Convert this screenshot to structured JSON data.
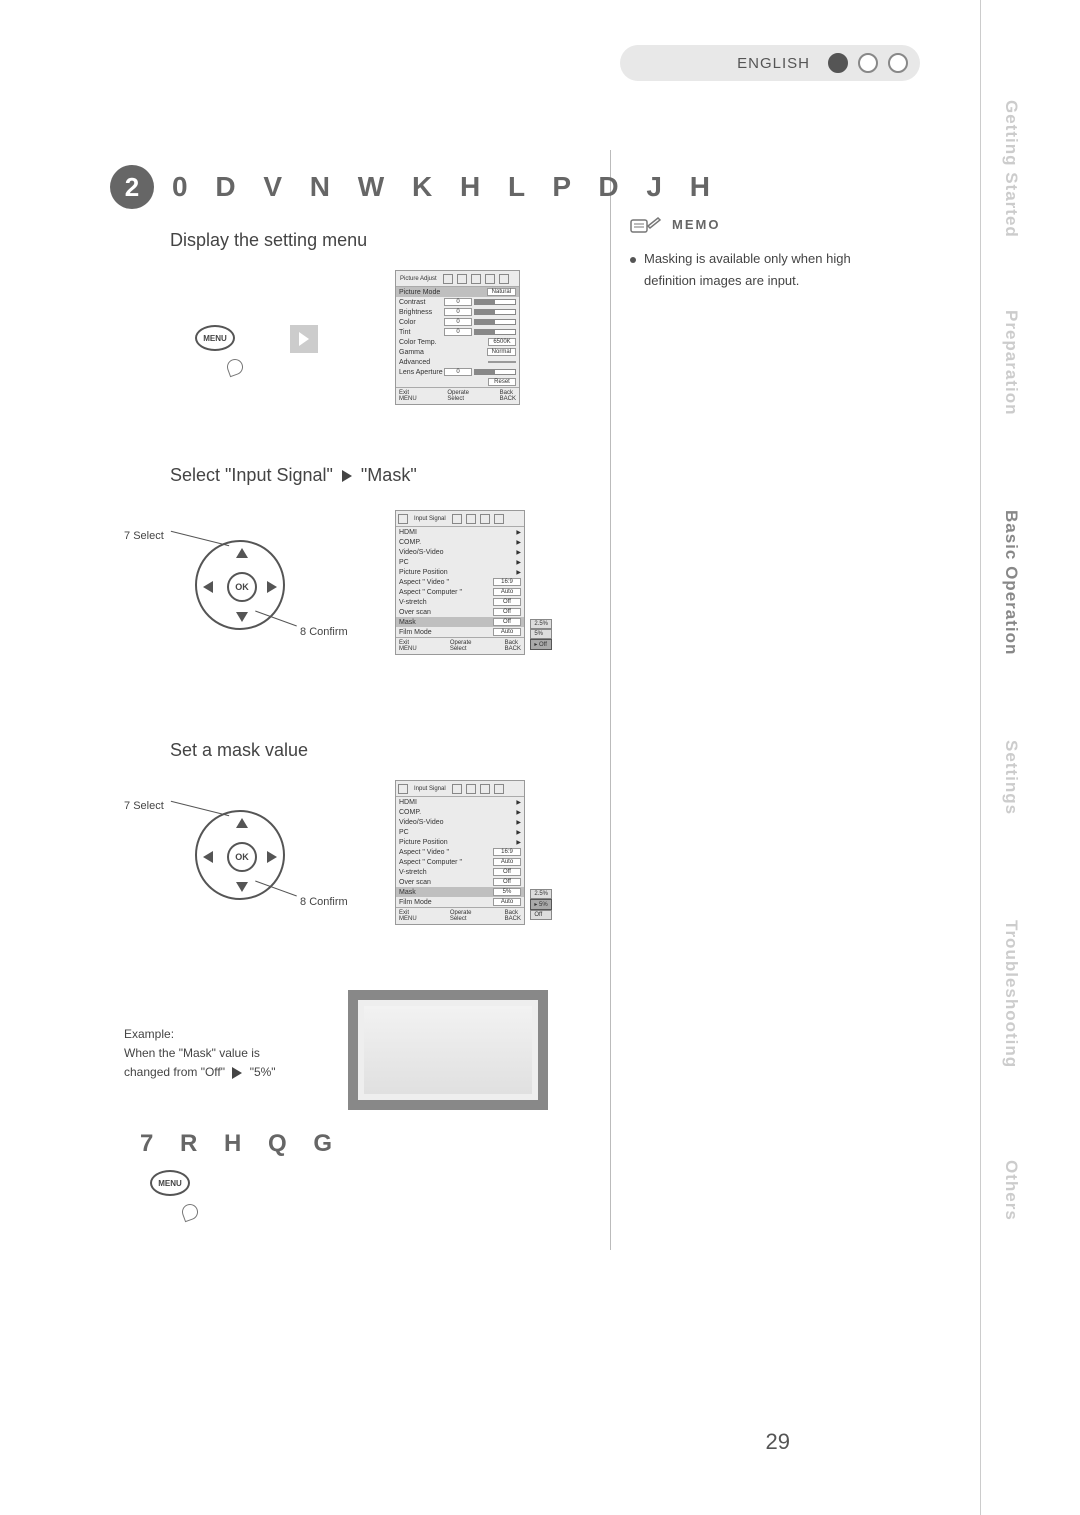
{
  "language_label": "ENGLISH",
  "section_number": "2",
  "section_title": "0 D V N   W K H   L P D J H",
  "step_1": "Display the setting menu",
  "step_2_prefix": "Select \"Input Signal\"",
  "step_2_suffix": "\"Mask\"",
  "step_3": "Set a mask value",
  "select_label_num": "7",
  "select_label": "Select",
  "confirm_label_num": "8",
  "confirm_label": "Confirm",
  "ok_label": "OK",
  "menu_btn": "MENU",
  "memo_heading": "MEMO",
  "memo_line1": "Masking is available only when high",
  "memo_line2": "definition images are input.",
  "example_l1": "Example:",
  "example_l2": "When the \"Mask\" value is",
  "example_l3_a": "changed from \"Off\"",
  "example_l3_b": "\"5%\"",
  "to_end": "7 R   H Q G",
  "page_number": "29",
  "side_tabs": {
    "gs": "Getting Started",
    "prep": "Preparation",
    "basic": "Basic Operation",
    "settings": "Settings",
    "trouble": "Troubleshooting",
    "others": "Others"
  },
  "osd1": {
    "title": "Picture Adjust",
    "rows": [
      {
        "l": "Picture Mode",
        "v": "Natural",
        "hl": true
      },
      {
        "l": "Contrast",
        "v": "0",
        "bar": true
      },
      {
        "l": "Brightness",
        "v": "0",
        "bar": true
      },
      {
        "l": "Color",
        "v": "0",
        "bar": true
      },
      {
        "l": "Tint",
        "v": "0",
        "bar": true
      },
      {
        "l": "Color Temp.",
        "v": "6500K"
      },
      {
        "l": "Gamma",
        "v": "Normal"
      },
      {
        "l": "Advanced",
        "v": ""
      },
      {
        "l": "Lens Aperture",
        "v": "0",
        "bar": true
      },
      {
        "l": "",
        "v": "Reset"
      }
    ],
    "footer": {
      "exit": "Exit",
      "menu": "MENU",
      "op": "Operate",
      "sel": "Select",
      "back": "Back",
      "bk": "BACK"
    }
  },
  "osd2": {
    "title": "Input Signal",
    "rows": [
      {
        "l": "HDMI"
      },
      {
        "l": "COMP."
      },
      {
        "l": "Video/S-Video"
      },
      {
        "l": "PC"
      },
      {
        "l": "Picture Position"
      },
      {
        "l": "Aspect \" Video \"",
        "v": "16:9"
      },
      {
        "l": "Aspect \" Computer \"",
        "v": "Auto"
      },
      {
        "l": "V-stretch",
        "v": "Off"
      },
      {
        "l": "Over scan",
        "v": "Off"
      },
      {
        "l": "Mask",
        "v": "Off",
        "hl": true
      },
      {
        "l": "Film Mode",
        "v": "Auto"
      }
    ],
    "submenu": [
      "2.5%",
      "5%",
      "Off"
    ],
    "submenu_sel": 2
  },
  "osd3": {
    "title": "Input Signal",
    "rows": [
      {
        "l": "HDMI"
      },
      {
        "l": "COMP."
      },
      {
        "l": "Video/S-Video"
      },
      {
        "l": "PC"
      },
      {
        "l": "Picture Position"
      },
      {
        "l": "Aspect \" Video \"",
        "v": "16:9"
      },
      {
        "l": "Aspect \" Computer \"",
        "v": "Auto"
      },
      {
        "l": "V-stretch",
        "v": "Off"
      },
      {
        "l": "Over scan",
        "v": "Off"
      },
      {
        "l": "Mask",
        "v": "5%",
        "hl": true
      },
      {
        "l": "Film Mode",
        "v": "Auto"
      }
    ],
    "submenu": [
      "2.5%",
      "5%",
      "Off"
    ],
    "submenu_sel": 1
  },
  "colors": {
    "side_inactive": "#cccccc",
    "side_active": "#888888",
    "accent": "#666666"
  }
}
